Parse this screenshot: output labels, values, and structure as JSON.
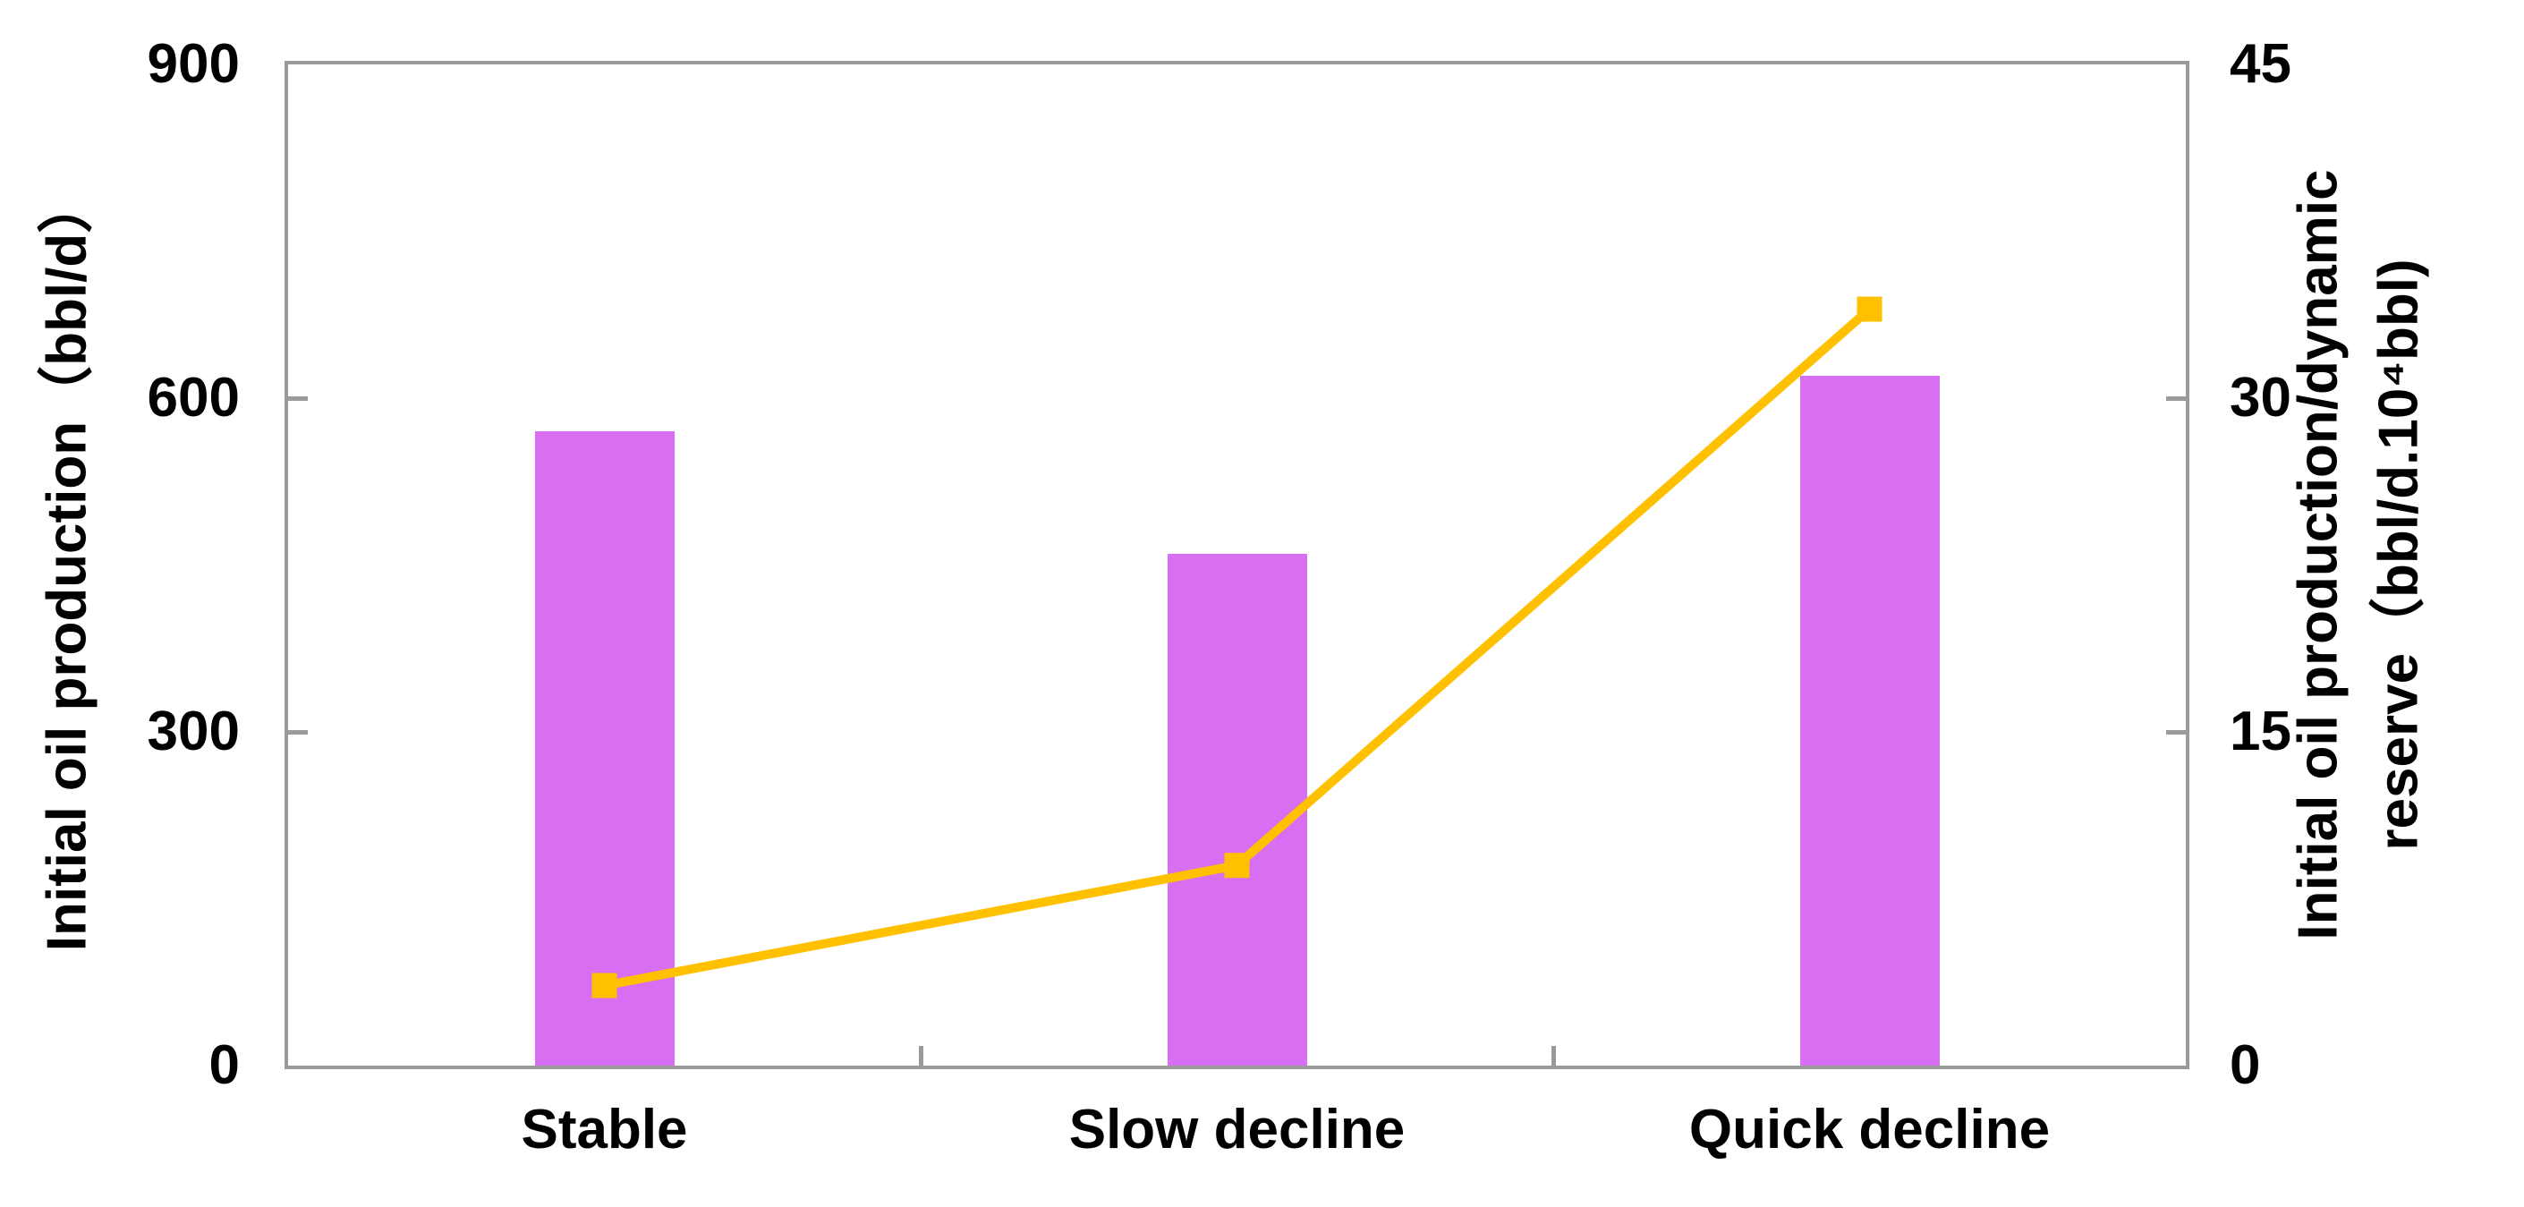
{
  "chart_data": {
    "type": "combo",
    "title": "",
    "categories": [
      "Stable",
      "Slow decline",
      "Quick decline"
    ],
    "series": [
      {
        "name": "Initial oil production",
        "type": "bar",
        "axis": "left",
        "values": [
          570,
          460,
          620
        ],
        "color": "#D86EF2"
      },
      {
        "name": "Initial oil production/dynamic reserve",
        "type": "line",
        "axis": "right",
        "values": [
          3.6,
          9,
          34
        ],
        "color": "#FFC000",
        "marker": "square"
      }
    ],
    "left_axis": {
      "label": "Initial oil production（bbl/d）",
      "min": 0,
      "max": 900,
      "ticks": [
        0,
        300,
        600,
        900
      ]
    },
    "right_axis": {
      "label_line1": "Initial oil production/dynamic",
      "label_line2": "reserve（bbl/d.10⁴bbl)",
      "min": 0,
      "max": 45,
      "ticks": [
        0,
        15,
        30,
        45
      ]
    },
    "grid": false,
    "legend_position": "top",
    "frame_color": "#9A9A9A",
    "text_color": "#000000"
  },
  "legend": {
    "bar_label": "Initial oil production",
    "line_label_line1": "Initial oil production/dynamic",
    "line_label_line2": "reserve"
  }
}
